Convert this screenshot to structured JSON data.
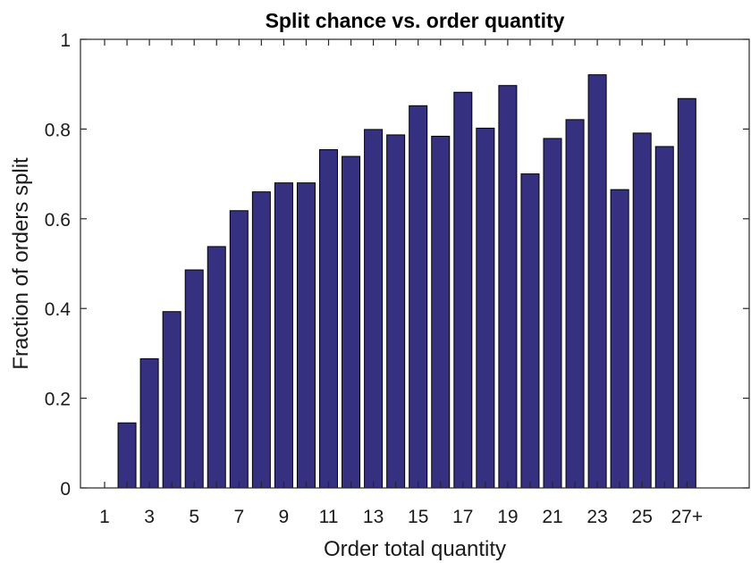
{
  "chart_data": {
    "type": "bar",
    "title": "Split chance vs. order quantity",
    "xlabel": "Order total quantity",
    "ylabel": "Fraction of orders split",
    "categories": [
      "1",
      "2",
      "3",
      "4",
      "5",
      "6",
      "7",
      "8",
      "9",
      "10",
      "11",
      "12",
      "13",
      "14",
      "15",
      "16",
      "17",
      "18",
      "19",
      "20",
      "21",
      "22",
      "23",
      "24",
      "25",
      "26",
      "27+"
    ],
    "x_tick_labels": [
      "1",
      "3",
      "5",
      "7",
      "9",
      "11",
      "13",
      "15",
      "17",
      "19",
      "21",
      "23",
      "25",
      "27+"
    ],
    "values": [
      0.0,
      0.145,
      0.288,
      0.393,
      0.486,
      0.538,
      0.618,
      0.66,
      0.68,
      0.68,
      0.754,
      0.739,
      0.799,
      0.787,
      0.852,
      0.784,
      0.882,
      0.802,
      0.897,
      0.7,
      0.779,
      0.821,
      0.921,
      0.665,
      0.791,
      0.761,
      0.868
    ],
    "ylim": [
      0,
      1
    ],
    "y_ticks": [
      0,
      0.2,
      0.4,
      0.6,
      0.8,
      1
    ],
    "y_tick_labels": [
      "0",
      "0.2",
      "0.4",
      "0.6",
      "0.8",
      "1"
    ],
    "bar_color": "#35307f",
    "grid": false
  }
}
